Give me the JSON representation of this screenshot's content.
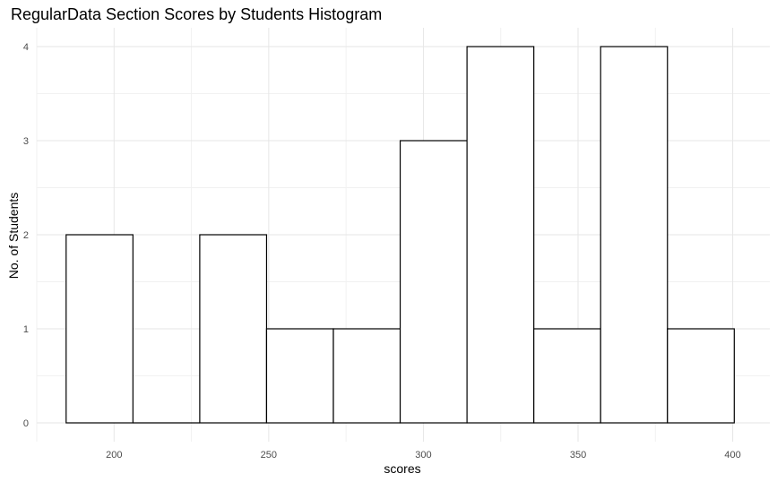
{
  "chart_data": {
    "type": "bar",
    "title": "RegularData Section Scores by Students Histogram",
    "xlabel": "scores",
    "ylabel": "No. of Students",
    "bins": [
      {
        "x0": 184.5,
        "x1": 206.1,
        "count": 2
      },
      {
        "x0": 206.1,
        "x1": 227.7,
        "count": 0
      },
      {
        "x0": 227.7,
        "x1": 249.3,
        "count": 2
      },
      {
        "x0": 249.3,
        "x1": 270.9,
        "count": 1
      },
      {
        "x0": 270.9,
        "x1": 292.5,
        "count": 1
      },
      {
        "x0": 292.5,
        "x1": 314.1,
        "count": 3
      },
      {
        "x0": 314.1,
        "x1": 335.7,
        "count": 4
      },
      {
        "x0": 335.7,
        "x1": 357.3,
        "count": 1
      },
      {
        "x0": 357.3,
        "x1": 378.9,
        "count": 4
      },
      {
        "x0": 378.9,
        "x1": 400.5,
        "count": 1
      }
    ],
    "xlim": [
      175,
      412
    ],
    "ylim": [
      -0.2,
      4.2
    ],
    "x_ticks": [
      200,
      250,
      300,
      350,
      400
    ],
    "y_ticks": [
      0,
      1,
      2,
      3,
      4
    ],
    "grid": true,
    "colors": {
      "fill": "#ffffff",
      "outline": "#000000",
      "grid": "#e6e6e6"
    }
  }
}
